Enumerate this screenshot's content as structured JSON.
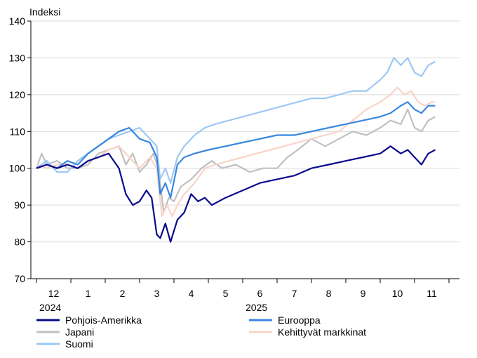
{
  "chart_data": {
    "type": "line",
    "ylabel": "Indeksi",
    "ylim": [
      70,
      140
    ],
    "yticks": [
      70,
      80,
      90,
      100,
      110,
      120,
      130,
      140
    ],
    "grid": true,
    "x_tick_labels": [
      "12",
      "1",
      "2",
      "3",
      "4",
      "5",
      "6",
      "7",
      "8",
      "9",
      "10",
      "11"
    ],
    "year_labels": [
      {
        "text": "2024",
        "at_month_index": 0
      },
      {
        "text": "2025",
        "at_month_index": 6
      }
    ],
    "x_unit": "months since start of December 2024",
    "xlim": [
      0,
      12
    ],
    "legend_position": "bottom",
    "series": [
      {
        "name": "Pohjois-Amerikka",
        "color": "#0a0a8c",
        "x": [
          0,
          0.3,
          0.6,
          0.9,
          1.2,
          1.5,
          1.8,
          2.1,
          2.4,
          2.6,
          2.8,
          3.0,
          3.2,
          3.35,
          3.5,
          3.6,
          3.75,
          3.9,
          4.1,
          4.3,
          4.5,
          4.7,
          4.9,
          5.1,
          5.5,
          6.0,
          6.5,
          7.0,
          7.5,
          8.0,
          8.5,
          9.0,
          9.5,
          10.0,
          10.3,
          10.6,
          10.8,
          11.0,
          11.2,
          11.4,
          11.6
        ],
        "values": [
          100,
          101,
          100,
          101,
          100,
          102,
          103,
          104,
          100,
          93,
          90,
          91,
          94,
          92,
          82,
          81,
          85,
          80,
          86,
          88,
          93,
          91,
          92,
          90,
          92,
          94,
          96,
          97,
          98,
          100,
          101,
          102,
          103,
          104,
          106,
          104,
          105,
          103,
          101,
          104,
          105
        ]
      },
      {
        "name": "Eurooppa",
        "color": "#3a86e0",
        "x": [
          0,
          0.3,
          0.6,
          0.9,
          1.2,
          1.5,
          1.8,
          2.1,
          2.4,
          2.7,
          3.0,
          3.3,
          3.5,
          3.6,
          3.75,
          3.9,
          4.1,
          4.3,
          4.6,
          5.0,
          5.5,
          6.0,
          6.5,
          7.0,
          7.5,
          8.0,
          8.5,
          9.0,
          9.5,
          10.0,
          10.3,
          10.6,
          10.8,
          11.0,
          11.2,
          11.4,
          11.6
        ],
        "values": [
          100,
          101,
          100,
          102,
          101,
          104,
          106,
          108,
          110,
          111,
          108,
          107,
          103,
          93,
          96,
          92,
          101,
          103,
          104,
          105,
          106,
          107,
          108,
          109,
          109,
          110,
          111,
          112,
          113,
          114,
          115,
          117,
          118,
          116,
          115,
          117,
          117
        ]
      },
      {
        "name": "Japani",
        "color": "#c0c0c0",
        "x": [
          0,
          0.15,
          0.3,
          0.6,
          0.9,
          1.2,
          1.5,
          1.8,
          2.1,
          2.4,
          2.6,
          2.8,
          3.0,
          3.2,
          3.4,
          3.55,
          3.7,
          3.85,
          4.0,
          4.2,
          4.5,
          4.8,
          5.1,
          5.4,
          5.8,
          6.2,
          6.6,
          7.0,
          7.3,
          7.6,
          8.0,
          8.4,
          8.8,
          9.2,
          9.6,
          10.0,
          10.3,
          10.6,
          10.8,
          11.0,
          11.2,
          11.4,
          11.6
        ],
        "values": [
          100,
          104,
          101,
          102,
          100,
          100,
          101,
          104,
          105,
          106,
          101,
          104,
          99,
          101,
          104,
          100,
          88,
          92,
          91,
          95,
          97,
          100,
          102,
          100,
          101,
          99,
          100,
          100,
          103,
          105,
          108,
          106,
          108,
          110,
          109,
          111,
          113,
          112,
          116,
          111,
          110,
          113,
          114
        ]
      },
      {
        "name": "Kehittyvät markkinat",
        "color": "#f9d3c8",
        "x": [
          0,
          0.3,
          0.6,
          0.9,
          1.2,
          1.5,
          1.8,
          2.1,
          2.4,
          2.7,
          3.0,
          3.3,
          3.5,
          3.65,
          3.8,
          3.95,
          4.1,
          4.3,
          4.6,
          4.9,
          5.2,
          5.6,
          6.0,
          6.4,
          6.8,
          7.2,
          7.6,
          8.0,
          8.4,
          8.8,
          9.2,
          9.6,
          10.0,
          10.3,
          10.5,
          10.7,
          10.9,
          11.1,
          11.3,
          11.5,
          11.6
        ],
        "values": [
          101,
          100,
          101,
          101,
          100,
          102,
          103,
          105,
          106,
          103,
          100,
          103,
          100,
          87,
          90,
          87,
          90,
          93,
          96,
          100,
          101,
          102,
          103,
          104,
          105,
          106,
          107,
          108,
          109,
          110,
          113,
          116,
          118,
          120,
          122,
          120,
          121,
          118,
          117,
          118,
          118
        ]
      },
      {
        "name": "Suomi",
        "color": "#9ec9f3",
        "x": [
          0,
          0.3,
          0.6,
          0.9,
          1.2,
          1.5,
          1.8,
          2.1,
          2.4,
          2.7,
          3.0,
          3.3,
          3.5,
          3.6,
          3.75,
          3.9,
          4.1,
          4.3,
          4.6,
          4.9,
          5.2,
          5.6,
          6.0,
          6.4,
          6.8,
          7.2,
          7.6,
          8.0,
          8.4,
          8.8,
          9.2,
          9.6,
          10.0,
          10.2,
          10.4,
          10.6,
          10.8,
          11.0,
          11.2,
          11.4,
          11.6
        ],
        "values": [
          100,
          102,
          99,
          99,
          102,
          104,
          106,
          108,
          109,
          110,
          111,
          108,
          106,
          97,
          100,
          96,
          103,
          106,
          109,
          111,
          112,
          113,
          114,
          115,
          116,
          117,
          118,
          119,
          119,
          120,
          121,
          121,
          124,
          126,
          130,
          128,
          130,
          126,
          125,
          128,
          129
        ]
      }
    ]
  }
}
